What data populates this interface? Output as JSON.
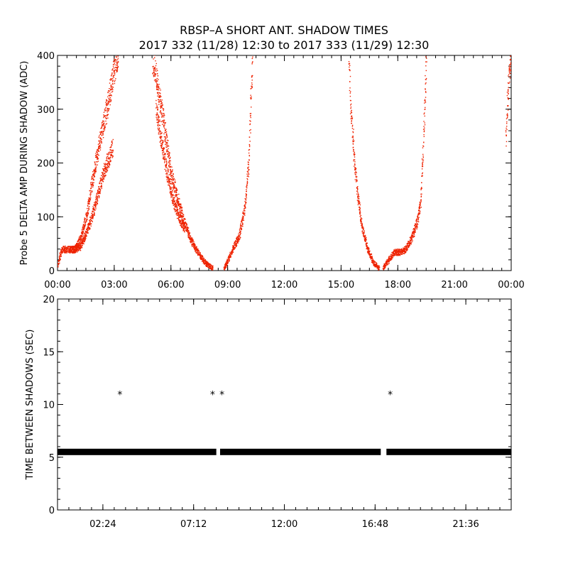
{
  "title": "RBSP–A SHORT ANT. SHADOW TIMES",
  "subtitle": "2017 332 (11/28) 12:30 to 2017 333 (11/29) 12:30",
  "colors": {
    "trace": "#ee2200",
    "axis": "#000000",
    "markers": "#000000"
  },
  "chart_data": [
    {
      "type": "scatter",
      "ylabel": "Probe 5 DELTA AMP DURING SHADOW (ADC)",
      "xlabel": "",
      "x_unit": "hours",
      "xlim": [
        0,
        24
      ],
      "ylim": [
        0,
        400
      ],
      "xticks": [
        "00:00",
        "03:00",
        "06:00",
        "09:00",
        "12:00",
        "15:00",
        "18:00",
        "21:00",
        "00:00"
      ],
      "yticks": [
        "0",
        "100",
        "200",
        "300",
        "400"
      ],
      "series": [
        {
          "color": "#ee2200",
          "segments": [
            {
              "x": [
                0.0,
                0.2,
                0.5,
                0.9,
                1.2,
                1.5,
                1.8,
                2.1,
                2.4,
                2.7,
                3.0,
                3.2
              ],
              "y": [
                10,
                40,
                40,
                40,
                60,
                100,
                160,
                220,
                270,
                320,
                380,
                400
              ]
            },
            {
              "x": [
                0.6,
                0.9,
                1.2,
                1.5,
                1.8,
                2.1,
                2.4,
                2.7,
                2.9
              ],
              "y": [
                40,
                40,
                45,
                70,
                100,
                140,
                180,
                210,
                230
              ]
            },
            {
              "x": [
                5.0,
                5.2,
                5.5,
                5.8,
                6.0,
                6.3,
                6.6,
                7.0,
                7.4,
                7.8,
                8.2
              ],
              "y": [
                400,
                360,
                300,
                230,
                180,
                140,
                100,
                60,
                35,
                15,
                5
              ]
            },
            {
              "x": [
                5.2,
                5.5,
                5.8,
                6.1,
                6.4,
                6.7
              ],
              "y": [
                300,
                240,
                180,
                130,
                100,
                80
              ]
            },
            {
              "x": [
                8.8,
                9.0,
                9.3,
                9.6,
                9.9,
                10.1,
                10.2,
                10.3
              ],
              "y": [
                5,
                20,
                45,
                65,
                120,
                200,
                300,
                400
              ]
            },
            {
              "x": [
                15.4,
                15.5,
                15.7,
                15.9,
                16.1,
                16.4,
                16.7,
                17.0
              ],
              "y": [
                400,
                300,
                200,
                130,
                80,
                40,
                15,
                5
              ]
            },
            {
              "x": [
                17.2,
                17.5,
                17.8,
                18.1,
                18.4,
                18.7,
                19.0,
                19.2,
                19.35,
                19.5
              ],
              "y": [
                5,
                20,
                35,
                35,
                40,
                60,
                90,
                130,
                250,
                400
              ]
            },
            {
              "x": [
                23.7,
                23.8,
                23.9,
                24.0
              ],
              "y": [
                250,
                320,
                380,
                400
              ]
            }
          ]
        }
      ]
    },
    {
      "type": "scatter",
      "ylabel": "TIME BETWEEN SHADOWS (SEC)",
      "xlabel": "",
      "x_unit": "hours",
      "xlim": [
        0,
        24
      ],
      "ylim": [
        0,
        20
      ],
      "xticks": [
        "02:24",
        "07:12",
        "12:00",
        "16:48",
        "21:36"
      ],
      "yticks": [
        "0",
        "5",
        "10",
        "15",
        "20"
      ],
      "series": [
        {
          "color": "#000000",
          "baseline_value": 5.5,
          "runs": [
            [
              0.0,
              8.4
            ],
            [
              8.6,
              17.1
            ],
            [
              17.4,
              24.0
            ]
          ],
          "outliers": {
            "x": [
              3.3,
              8.2,
              8.7,
              17.6
            ],
            "y": [
              11.0,
              11.0,
              11.0,
              11.0
            ]
          }
        }
      ]
    }
  ]
}
